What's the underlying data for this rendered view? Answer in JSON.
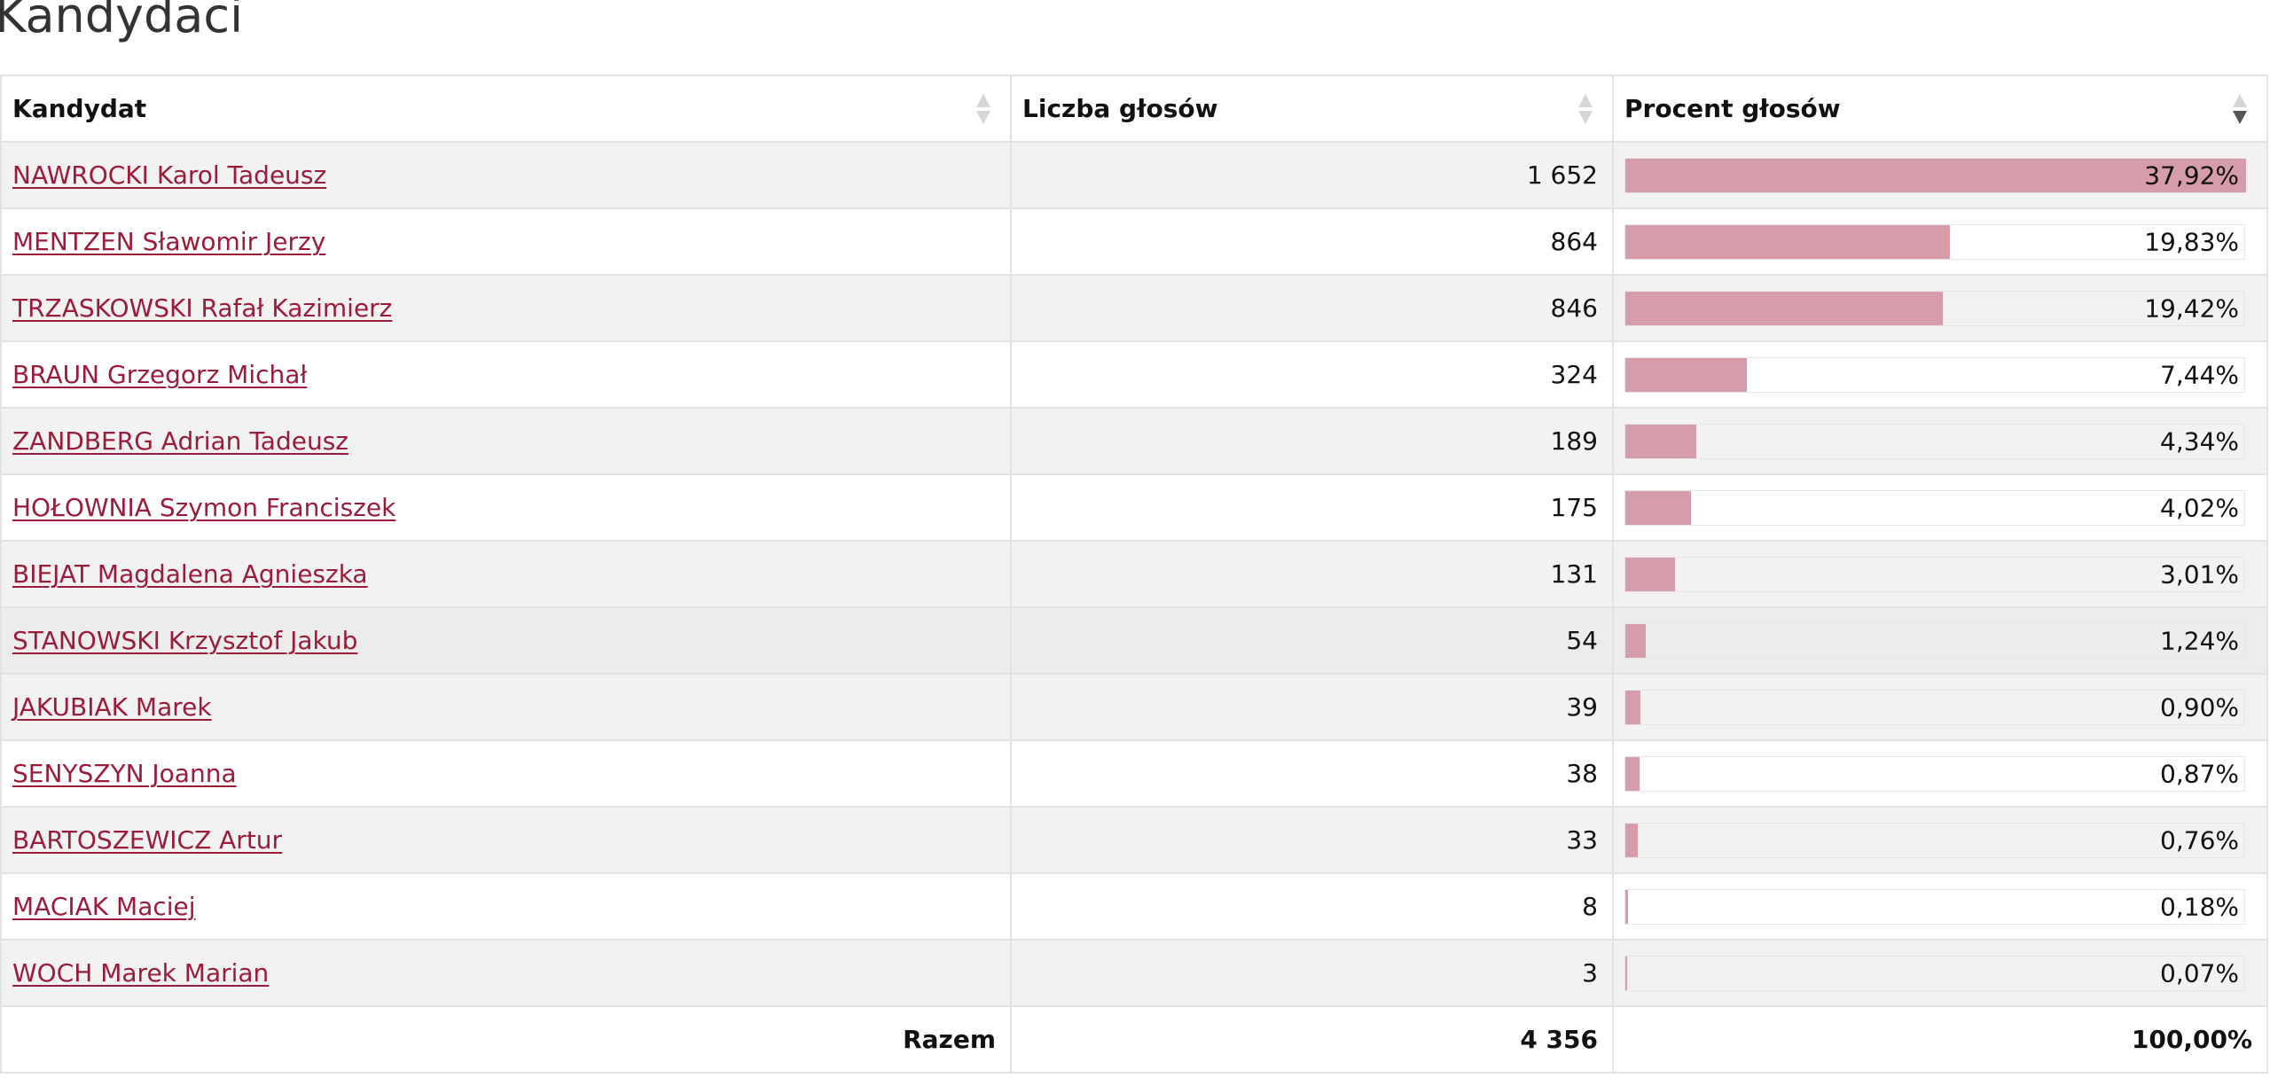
{
  "page": {
    "title": "Kandydaci"
  },
  "table": {
    "headers": {
      "candidate": "Kandydat",
      "votes": "Liczba głosów",
      "percent": "Procent głosów"
    },
    "sort_state": {
      "column": "percent",
      "direction": "desc"
    },
    "rows": [
      {
        "name": "NAWROCKI Karol Tadeusz",
        "votes": "1 652",
        "percent": "37,92%",
        "share": 0.3792
      },
      {
        "name": "MENTZEN Sławomir Jerzy",
        "votes": "864",
        "percent": "19,83%",
        "share": 0.1983
      },
      {
        "name": "TRZASKOWSKI Rafał Kazimierz",
        "votes": "846",
        "percent": "19,42%",
        "share": 0.1942
      },
      {
        "name": "BRAUN Grzegorz Michał",
        "votes": "324",
        "percent": "7,44%",
        "share": 0.0744
      },
      {
        "name": "ZANDBERG Adrian Tadeusz",
        "votes": "189",
        "percent": "4,34%",
        "share": 0.0434
      },
      {
        "name": "HOŁOWNIA Szymon Franciszek",
        "votes": "175",
        "percent": "4,02%",
        "share": 0.0402
      },
      {
        "name": "BIEJAT Magdalena Agnieszka",
        "votes": "131",
        "percent": "3,01%",
        "share": 0.0301
      },
      {
        "name": "STANOWSKI Krzysztof Jakub",
        "votes": "54",
        "percent": "1,24%",
        "share": 0.0124
      },
      {
        "name": "JAKUBIAK Marek",
        "votes": "39",
        "percent": "0,90%",
        "share": 0.009
      },
      {
        "name": "SENYSZYN Joanna",
        "votes": "38",
        "percent": "0,87%",
        "share": 0.0087
      },
      {
        "name": "BARTOSZEWICZ Artur",
        "votes": "33",
        "percent": "0,76%",
        "share": 0.0076
      },
      {
        "name": "MACIAK Maciej",
        "votes": "8",
        "percent": "0,18%",
        "share": 0.0018
      },
      {
        "name": "WOCH Marek Marian",
        "votes": "3",
        "percent": "0,07%",
        "share": 0.0007
      }
    ],
    "footer": {
      "label": "Razem",
      "votes": "4 356",
      "percent": "100,00%"
    }
  },
  "colors": {
    "link": "#9b1c38",
    "bar": "#d79ca9",
    "row_stripe": "#f2f2f2"
  }
}
